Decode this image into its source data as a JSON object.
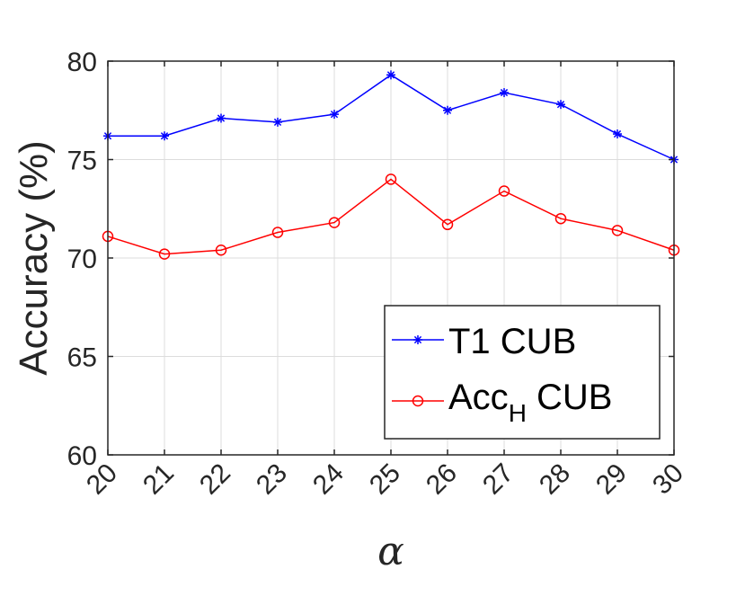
{
  "chart_data": {
    "type": "line",
    "xlabel": "α",
    "ylabel": "Accuracy (%)",
    "x": [
      20,
      21,
      22,
      23,
      24,
      25,
      26,
      27,
      28,
      29,
      30
    ],
    "xlim": [
      20,
      30
    ],
    "ylim": [
      60,
      80
    ],
    "xticks": [
      "20",
      "21",
      "22",
      "23",
      "24",
      "25",
      "26",
      "27",
      "28",
      "29",
      "30"
    ],
    "yticks": [
      "60",
      "65",
      "70",
      "75",
      "80"
    ],
    "grid": true,
    "legend_position": "bottom-right",
    "series": [
      {
        "name": "T1 CUB",
        "color": "#0000ff",
        "marker": "asterisk",
        "values": [
          76.2,
          76.2,
          77.1,
          76.9,
          77.3,
          79.3,
          77.5,
          78.4,
          77.8,
          76.3,
          75.0
        ]
      },
      {
        "name": "Acc",
        "name_subscript": "H",
        "name_suffix": " CUB",
        "color": "#ff0000",
        "marker": "circle",
        "values": [
          71.1,
          70.2,
          70.4,
          71.3,
          71.8,
          74.0,
          71.7,
          73.4,
          72.0,
          71.4,
          70.4
        ]
      }
    ]
  }
}
